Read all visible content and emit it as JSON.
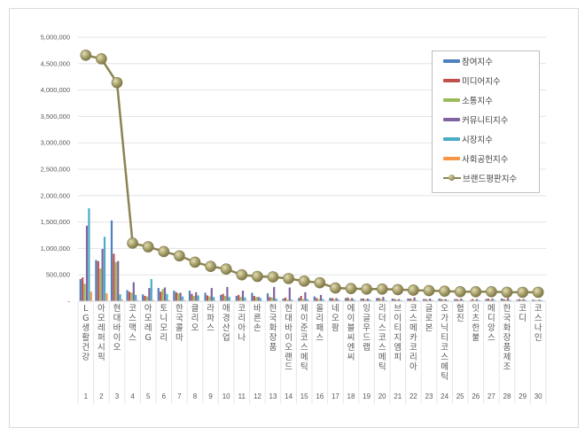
{
  "chart_data": {
    "type": "bar+line",
    "title": "",
    "xlabel": "",
    "ylabel": "",
    "ylim": [
      0,
      5000000
    ],
    "yticks": [
      0,
      500000,
      1000000,
      1500000,
      2000000,
      2500000,
      3000000,
      3500000,
      4000000,
      4500000,
      5000000
    ],
    "ytick_labels": [
      "-",
      "500,000",
      "1,000,000",
      "1,500,000",
      "2,000,000",
      "2,500,000",
      "3,000,000",
      "3,500,000",
      "4,000,000",
      "4,500,000",
      "5,000,000"
    ],
    "grid": true,
    "legend_position": "upper right (inside)",
    "categories": [
      "LG생활건강",
      "아모레퍼시픽",
      "현대바이오",
      "코스맥스",
      "아모레G",
      "토니모리",
      "한국콜마",
      "클리오",
      "라파스",
      "애경산업",
      "코리아나",
      "바른손",
      "한국화장품",
      "현대바이오랜드",
      "제이준코스메틱",
      "올리패스",
      "네오팜",
      "에이블씨엔씨",
      "잉글우드랩",
      "리더스코스메틱",
      "브이티지엠피",
      "코스메카코리아",
      "글로본",
      "오가닉티코스메틱",
      "협진",
      "잇츠한불",
      "메디앙스",
      "한국화장품제조",
      "코디",
      "코스나인"
    ],
    "ranks": [
      "1",
      "2",
      "3",
      "4",
      "5",
      "6",
      "7",
      "8",
      "9",
      "10",
      "11",
      "12",
      "13",
      "14",
      "15",
      "16",
      "17",
      "18",
      "19",
      "20",
      "21",
      "22",
      "23",
      "24",
      "25",
      "26",
      "27",
      "28",
      "29",
      "30"
    ],
    "series": [
      {
        "name": "참여지수",
        "kind": "bar",
        "color": "#4f81bd",
        "values": [
          420000,
          780000,
          1530000,
          210000,
          130000,
          250000,
          200000,
          200000,
          160000,
          120000,
          100000,
          160000,
          150000,
          50000,
          60000,
          90000,
          60000,
          60000,
          50000,
          60000,
          50000,
          50000,
          40000,
          50000,
          40000,
          20000,
          40000,
          50000,
          30000,
          30000
        ]
      },
      {
        "name": "미디어지수",
        "kind": "bar",
        "color": "#c0504d",
        "values": [
          450000,
          760000,
          900000,
          180000,
          100000,
          180000,
          170000,
          140000,
          110000,
          140000,
          120000,
          100000,
          80000,
          70000,
          100000,
          60000,
          60000,
          70000,
          50000,
          60000,
          40000,
          50000,
          40000,
          40000,
          40000,
          40000,
          50000,
          40000,
          40000,
          20000
        ]
      },
      {
        "name": "소통지수",
        "kind": "bar",
        "color": "#9bbb59",
        "values": [
          330000,
          620000,
          740000,
          160000,
          90000,
          230000,
          150000,
          100000,
          90000,
          100000,
          80000,
          80000,
          70000,
          30000,
          40000,
          40000,
          40000,
          40000,
          30000,
          40000,
          30000,
          30000,
          30000,
          30000,
          30000,
          20000,
          30000,
          30000,
          30000,
          20000
        ]
      },
      {
        "name": "커뮤니티지수",
        "kind": "bar",
        "color": "#8064a2",
        "values": [
          1430000,
          990000,
          760000,
          360000,
          250000,
          260000,
          160000,
          170000,
          250000,
          270000,
          200000,
          80000,
          270000,
          260000,
          170000,
          120000,
          60000,
          60000,
          50000,
          80000,
          40000,
          70000,
          50000,
          40000,
          50000,
          40000,
          50000,
          60000,
          40000,
          30000
        ]
      },
      {
        "name": "시장지수",
        "kind": "bar",
        "color": "#4bacc6",
        "values": [
          1760000,
          1220000,
          130000,
          120000,
          420000,
          140000,
          90000,
          110000,
          80000,
          80000,
          70000,
          60000,
          50000,
          30000,
          40000,
          40000,
          30000,
          30000,
          30000,
          20000,
          20000,
          20000,
          20000,
          20000,
          20000,
          20000,
          20000,
          20000,
          20000,
          20000
        ]
      },
      {
        "name": "사회공헌지수",
        "kind": "bar",
        "color": "#f79646",
        "values": [
          180000,
          150000,
          30000,
          20000,
          20000,
          20000,
          20000,
          10000,
          10000,
          10000,
          10000,
          10000,
          10000,
          10000,
          10000,
          10000,
          10000,
          10000,
          10000,
          10000,
          10000,
          10000,
          10000,
          10000,
          10000,
          10000,
          10000,
          10000,
          10000,
          10000
        ]
      },
      {
        "name": "브랜드평판지수",
        "kind": "line",
        "color": "#8c8454",
        "values": [
          4660000,
          4590000,
          4140000,
          1100000,
          1030000,
          940000,
          860000,
          740000,
          660000,
          610000,
          500000,
          470000,
          460000,
          430000,
          380000,
          350000,
          250000,
          240000,
          230000,
          230000,
          220000,
          210000,
          200000,
          190000,
          180000,
          180000,
          180000,
          170000,
          170000,
          170000
        ]
      }
    ]
  },
  "legend": {
    "items": [
      "참여지수",
      "미디어지수",
      "소통지수",
      "커뮤니티지수",
      "시장지수",
      "사회공헌지수",
      "브랜드평판지수"
    ]
  }
}
